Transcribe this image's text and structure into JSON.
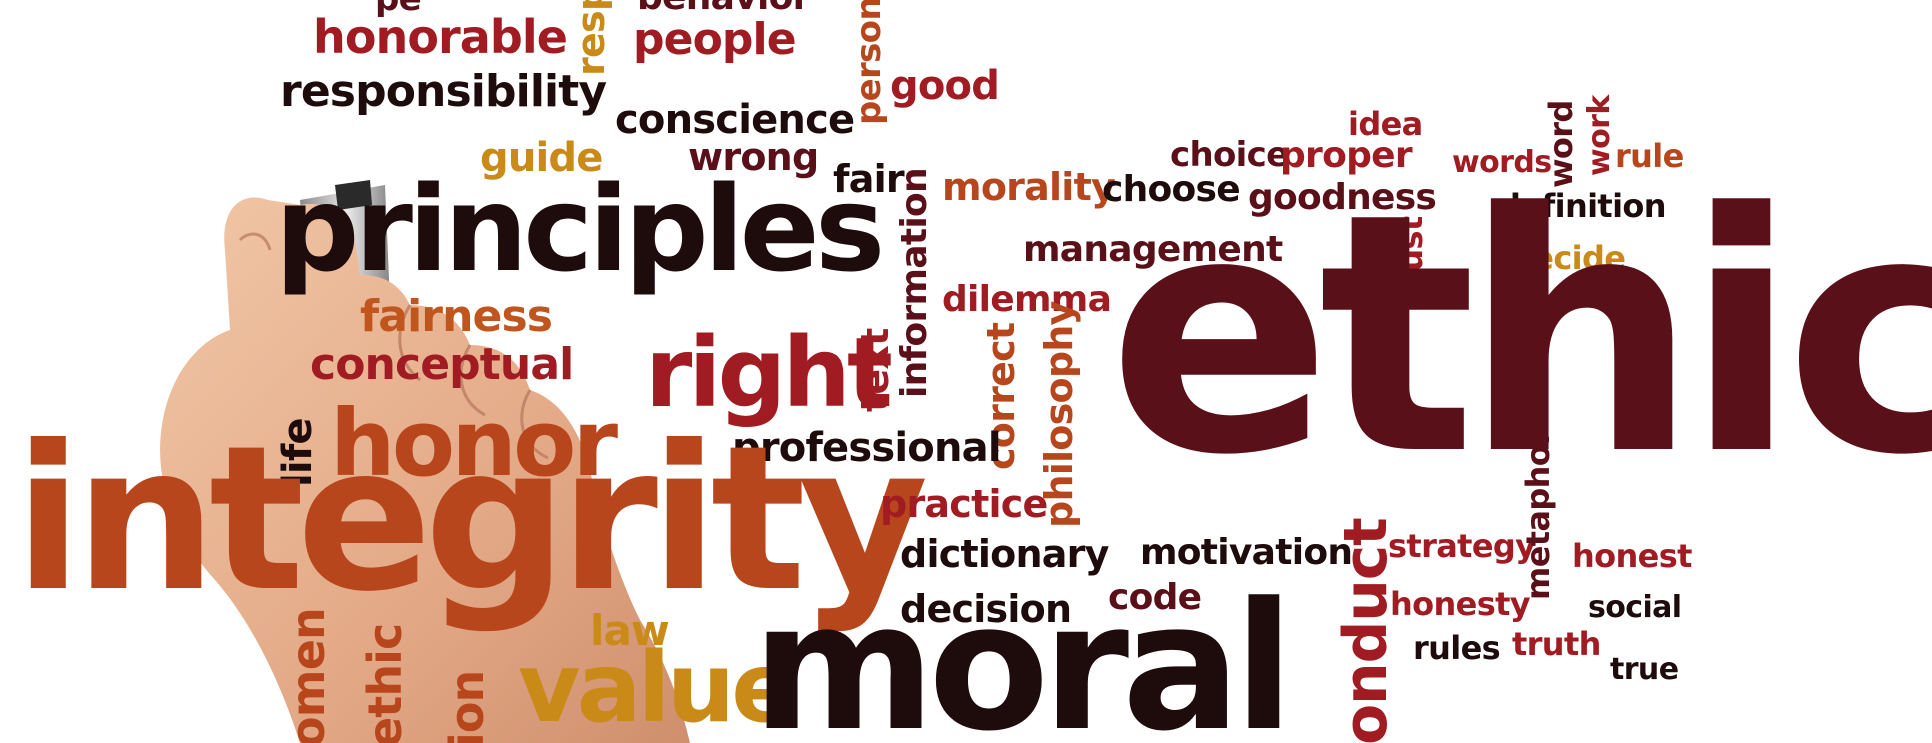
{
  "palette": {
    "maroon": "#5a1018",
    "dark": "#1e0b0b",
    "red": "#a01c22",
    "orange": "#b8461c",
    "gold": "#c98a18",
    "skin": "#e6b08e"
  },
  "words": {
    "ethics": "ethics",
    "integrity": "integrity",
    "moral": "moral",
    "principles": "principles",
    "right": "right",
    "honor": "honor",
    "value": "value",
    "conduct": "onduct",
    "honorable": "honorable",
    "people": "people",
    "behavior": "behavior",
    "resp": "resp",
    "person": "person",
    "pe": "pe",
    "responsibility": "responsibility",
    "good": "good",
    "conscience": "conscience",
    "guide": "guide",
    "wrong": "wrong",
    "fair": "fair",
    "morality": "morality",
    "choose": "choose",
    "choice": "choice",
    "proper": "proper",
    "idea": "idea",
    "goodness": "goodness",
    "words": "words",
    "word": "word",
    "work": "work",
    "rule": "rule",
    "definition": "definition",
    "decide": "decide",
    "just": "just",
    "management": "management",
    "information": "information",
    "dilemma": "dilemma",
    "text": "text",
    "correct": "correct",
    "philosophy": "philosophy",
    "fairness": "fairness",
    "conceptual": "conceptual",
    "life": "life",
    "professional": "professional",
    "practice": "practice",
    "dictionary": "dictionary",
    "motivation": "motivation",
    "code": "code",
    "decision": "decision",
    "strategy": "strategy",
    "metaphor": "metaphor",
    "honest": "honest",
    "honesty": "honesty",
    "social": "social",
    "rules": "rules",
    "truth": "truth",
    "true": "true",
    "law": "law",
    "omen": "omen",
    "ethic": "ethic",
    "ion": "ion"
  }
}
